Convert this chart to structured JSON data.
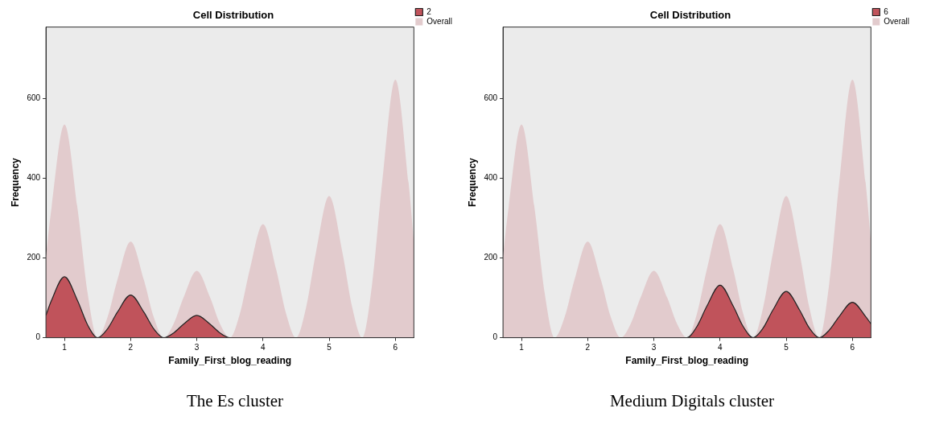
{
  "chart_data": [
    {
      "type": "area",
      "title": "Cell Distribution",
      "xlabel": "Family_First_blog_reading",
      "ylabel": "Frequency",
      "xlim": [
        0.72,
        6.28
      ],
      "ylim": [
        0,
        780
      ],
      "xticks": [
        1,
        2,
        3,
        4,
        5,
        6
      ],
      "yticks": [
        0,
        200,
        400,
        600
      ],
      "grid": false,
      "legend": "top right",
      "marker": "none",
      "annotations": [
        "The Es cluster"
      ],
      "series": [
        {
          "name": "Overall",
          "color": "#e2cbcd",
          "x": [
            0.72,
            0.8,
            1,
            1.2,
            1.35,
            1.5,
            1.65,
            1.8,
            2,
            2.2,
            2.35,
            2.5,
            2.65,
            2.8,
            3,
            3.2,
            3.35,
            3.5,
            3.65,
            3.8,
            4,
            4.2,
            4.35,
            4.5,
            4.65,
            4.8,
            5,
            5.2,
            5.35,
            5.5,
            5.65,
            5.8,
            6,
            6.2,
            6.28
          ],
          "values": [
            204,
            321,
            535,
            321,
            112,
            0,
            51,
            145,
            241,
            145,
            51,
            0,
            35,
            101,
            168,
            101,
            35,
            0,
            60,
            171,
            285,
            171,
            60,
            0,
            75,
            214,
            356,
            214,
            75,
            0,
            136,
            389,
            648,
            389,
            240
          ]
        },
        {
          "name": "2",
          "color": "#c0535b",
          "x": [
            0.72,
            0.8,
            1,
            1.2,
            1.35,
            1.5,
            1.65,
            1.8,
            2,
            2.2,
            2.35,
            2.5,
            2.65,
            2.8,
            3,
            3.2,
            3.35,
            3.5,
            6.28
          ],
          "values": [
            56,
            92,
            153,
            92,
            32,
            0,
            22,
            64,
            107,
            64,
            22,
            0,
            12,
            34,
            56,
            34,
            12,
            0,
            0
          ]
        }
      ]
    },
    {
      "type": "area",
      "title": "Cell Distribution",
      "xlabel": "Family_First_blog_reading",
      "ylabel": "Frequency",
      "xlim": [
        0.72,
        6.28
      ],
      "ylim": [
        0,
        780
      ],
      "xticks": [
        1,
        2,
        3,
        4,
        5,
        6
      ],
      "yticks": [
        0,
        200,
        400,
        600
      ],
      "grid": false,
      "legend": "top right",
      "marker": "none",
      "annotations": [
        "Medium Digitals cluster"
      ],
      "series": [
        {
          "name": "Overall",
          "color": "#e2cbcd",
          "x": [
            0.72,
            0.8,
            1,
            1.2,
            1.35,
            1.5,
            1.65,
            1.8,
            2,
            2.2,
            2.35,
            2.5,
            2.65,
            2.8,
            3,
            3.2,
            3.35,
            3.5,
            3.65,
            3.8,
            4,
            4.2,
            4.35,
            4.5,
            4.65,
            4.8,
            5,
            5.2,
            5.35,
            5.5,
            5.65,
            5.8,
            6,
            6.2,
            6.28
          ],
          "values": [
            204,
            321,
            535,
            321,
            112,
            0,
            51,
            145,
            241,
            145,
            51,
            0,
            35,
            101,
            168,
            101,
            35,
            0,
            60,
            171,
            285,
            171,
            60,
            0,
            75,
            214,
            356,
            214,
            75,
            0,
            136,
            389,
            648,
            389,
            240
          ]
        },
        {
          "name": "6",
          "color": "#c0535b",
          "x": [
            0.72,
            3.5,
            3.65,
            3.8,
            4,
            4.2,
            4.35,
            4.5,
            4.65,
            4.8,
            5,
            5.2,
            5.35,
            5.5,
            5.65,
            5.8,
            6,
            6.2,
            6.28
          ],
          "values": [
            0,
            0,
            28,
            79,
            132,
            79,
            28,
            0,
            24,
            70,
            116,
            70,
            24,
            0,
            19,
            53,
            89,
            53,
            35
          ]
        }
      ]
    }
  ]
}
